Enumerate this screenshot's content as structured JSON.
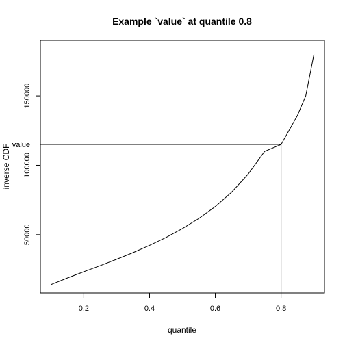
{
  "chart_data": {
    "type": "line",
    "title": "Example `value` at quantile 0.8",
    "xlabel": "quantile",
    "ylabel": "inverse CDF",
    "xlim": [
      0.068,
      0.932
    ],
    "ylim": [
      8000,
      190000
    ],
    "x_ticks": [
      0.2,
      0.4,
      0.6,
      0.8
    ],
    "x_tick_labels": [
      "0.2",
      "0.4",
      "0.6",
      "0.8"
    ],
    "y_ticks": [
      50000,
      100000,
      150000
    ],
    "y_tick_labels": [
      "50000",
      "100000",
      "150000"
    ],
    "series": [
      {
        "x": [
          0.1,
          0.15,
          0.2,
          0.25,
          0.3,
          0.35,
          0.4,
          0.45,
          0.5,
          0.55,
          0.6,
          0.65,
          0.7,
          0.75,
          0.8,
          0.85,
          0.875,
          0.9
        ],
        "y": [
          14000,
          18800,
          23300,
          27700,
          32300,
          37100,
          42300,
          48000,
          54400,
          61700,
          70300,
          80700,
          93700,
          110000,
          115000,
          136000,
          150000,
          180000
        ]
      }
    ],
    "annotation": {
      "label": "value",
      "x": 0.8,
      "y": 115000
    },
    "grid": false,
    "legend": "none"
  }
}
